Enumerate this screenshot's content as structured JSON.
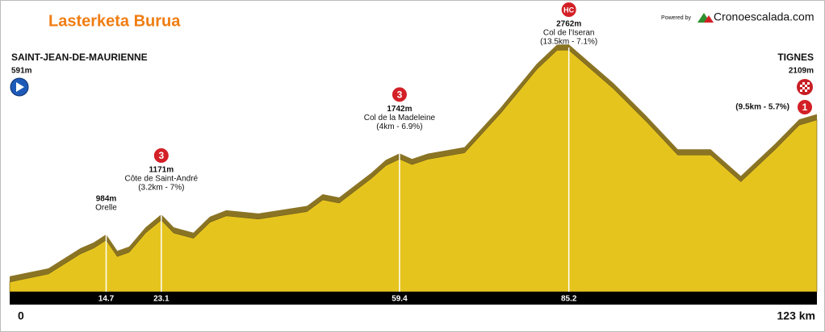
{
  "chart_data": {
    "type": "area",
    "title": "Lasterketa Burua",
    "credit": "Powered by",
    "brand": "Cronoescalada.com",
    "color": "#e6c41e",
    "shade_color": "#8a7424",
    "x": [
      0,
      5.9,
      10.8,
      12.8,
      14.7,
      16.4,
      18.2,
      20.7,
      23.1,
      25,
      28,
      30.5,
      33,
      37.9,
      45.3,
      47.7,
      50.2,
      55.1,
      57.3,
      59.4,
      61.3,
      63.7,
      69.3,
      74.8,
      80.3,
      83.4,
      85.2,
      92,
      96.9,
      101.8,
      106.8,
      111.4,
      116.6,
      120.3,
      123
    ],
    "values": [
      591,
      666,
      855,
      908,
      984,
      830,
      870,
      1050,
      1171,
      1050,
      1000,
      1150,
      1210,
      1180,
      1250,
      1360,
      1330,
      1560,
      1680,
      1742,
      1690,
      1740,
      1800,
      2170,
      2580,
      2760,
      2762,
      2400,
      2100,
      1780,
      1780,
      1530,
      1830,
      2060,
      2109
    ],
    "value_labels": [
      "591m",
      null,
      null,
      null,
      "984m",
      null,
      null,
      null,
      "1171m",
      null,
      null,
      null,
      null,
      null,
      null,
      null,
      null,
      null,
      null,
      "1742m",
      null,
      null,
      null,
      null,
      null,
      null,
      "2762m",
      null,
      null,
      null,
      null,
      null,
      null,
      null,
      "2109m"
    ],
    "xlim": [
      0,
      123
    ],
    "ylim": [
      500,
      3200
    ],
    "xticks": [
      0,
      14.7,
      23.1,
      59.4,
      85.2,
      {
        "value": 123,
        "label": "123 km"
      }
    ],
    "start": {
      "name": "SAINT-JEAN-DE-MAURIENNE"
    },
    "finish": {
      "name": "TIGNES",
      "detail": "(9.5km - 5.7%)",
      "category": "1"
    },
    "annotations": [
      {
        "x": 14.7,
        "name": "Orelle"
      },
      {
        "x": 23.1,
        "name": "Côte de Saint-André",
        "detail": "(3.2km - 7%)",
        "category": "3"
      },
      {
        "x": 59.4,
        "name": "Col de la Madeleine",
        "detail": "(4km - 6.9%)",
        "category": "3"
      },
      {
        "x": 85.2,
        "name": "Col de l'Iseran",
        "detail": "(13.5km - 7.1%)",
        "category": "HC"
      }
    ]
  }
}
